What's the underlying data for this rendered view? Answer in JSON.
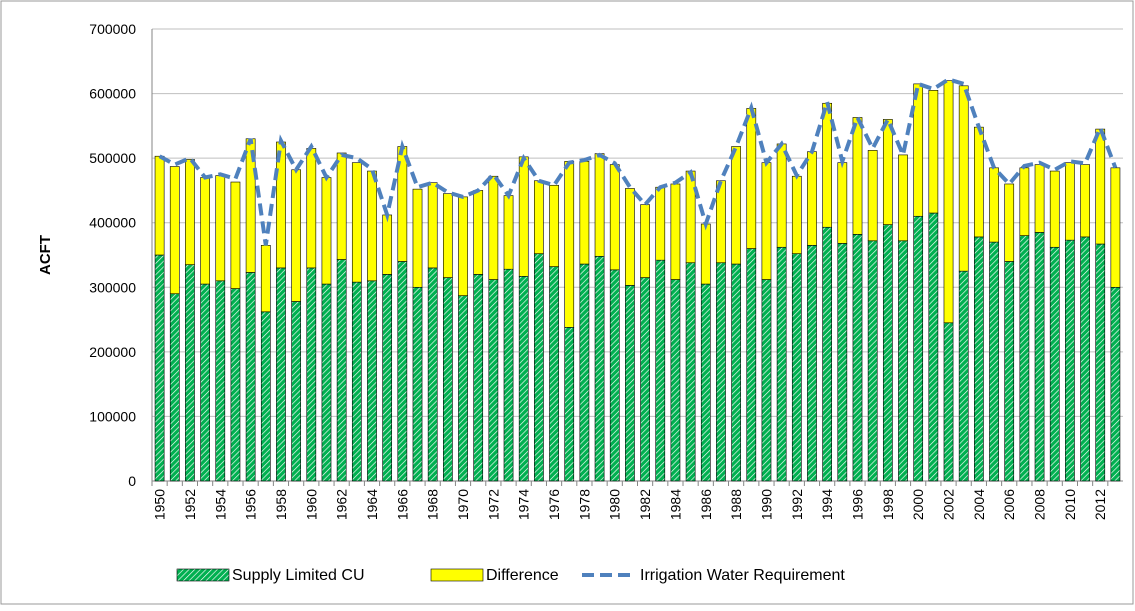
{
  "chart_data": {
    "type": "bar-line",
    "y_label": "ACFT",
    "categories": [
      "1950",
      null,
      "1952",
      null,
      "1954",
      null,
      "1956",
      null,
      "1958",
      null,
      "1960",
      null,
      "1962",
      null,
      "1964",
      null,
      "1966",
      null,
      "1968",
      null,
      "1970",
      null,
      "1972",
      null,
      "1974",
      null,
      "1976",
      null,
      "1978",
      null,
      "1980",
      null,
      "1982",
      null,
      "1984",
      null,
      "1986",
      null,
      "1988",
      null,
      "1990",
      null,
      "1992",
      null,
      "1994",
      null,
      "1996",
      null,
      "1998",
      null,
      "2000",
      null,
      "2002",
      null,
      "2004",
      null,
      "2006",
      null,
      "2008",
      null,
      "2010",
      null,
      "2012",
      null
    ],
    "series": [
      {
        "name": "Supply Limited CU",
        "kind": "bar",
        "color": "#00b050",
        "hatched": true,
        "values": [
          350000,
          290000,
          335000,
          305000,
          310000,
          298000,
          323000,
          262000,
          330000,
          278000,
          330000,
          305000,
          343000,
          308000,
          310000,
          320000,
          340000,
          300000,
          330000,
          315000,
          287000,
          320000,
          312000,
          328000,
          317000,
          352000,
          332000,
          238000,
          336000,
          348000,
          327000,
          303000,
          315000,
          342000,
          312000,
          338000,
          305000,
          338000,
          336000,
          360000,
          312000,
          362000,
          352000,
          365000,
          393000,
          368000,
          382000,
          372000,
          397000,
          372000,
          410000,
          415000,
          245000,
          325000,
          378000,
          370000,
          340000,
          380000,
          385000,
          362000,
          373000,
          378000,
          367000,
          300000
        ]
      },
      {
        "name": "Difference",
        "kind": "bar",
        "color": "#ffff00",
        "values": [
          153000,
          197000,
          163000,
          165000,
          163000,
          165000,
          207000,
          103000,
          195000,
          204000,
          185000,
          165000,
          165000,
          185000,
          170000,
          92000,
          178000,
          152000,
          132000,
          130000,
          153000,
          130000,
          160000,
          114000,
          185000,
          113000,
          126000,
          257000,
          159000,
          159000,
          163000,
          150000,
          113000,
          113000,
          148000,
          142000,
          93000,
          127000,
          182000,
          217000,
          181000,
          160000,
          120000,
          145000,
          192000,
          125000,
          181000,
          140000,
          163000,
          133000,
          205000,
          190000,
          375000,
          287000,
          170000,
          115000,
          120000,
          105000,
          105000,
          118000,
          120000,
          112000,
          178000,
          185000
        ]
      },
      {
        "name": "Irrigation Water Requirement",
        "kind": "line",
        "color": "#4f81bd",
        "dashed": true,
        "values": [
          503000,
          490000,
          500000,
          470000,
          475000,
          468000,
          530000,
          365000,
          527000,
          482000,
          518000,
          470000,
          505000,
          500000,
          483000,
          412000,
          518000,
          455000,
          462000,
          447000,
          440000,
          450000,
          475000,
          442000,
          500000,
          465000,
          458000,
          493000,
          497000,
          505000,
          492000,
          455000,
          428000,
          455000,
          462000,
          478000,
          398000,
          465000,
          518000,
          578000,
          493000,
          522000,
          473000,
          510000,
          587000,
          495000,
          563000,
          515000,
          560000,
          505000,
          615000,
          607000,
          622000,
          615000,
          548000,
          485000,
          460000,
          488000,
          493000,
          482000,
          495000,
          492000,
          547000,
          485000
        ]
      }
    ],
    "ylim": [
      0,
      700000
    ],
    "yticks": [
      0,
      100000,
      200000,
      300000,
      400000,
      500000,
      600000,
      700000
    ],
    "grid": true,
    "legend": "bottom"
  }
}
